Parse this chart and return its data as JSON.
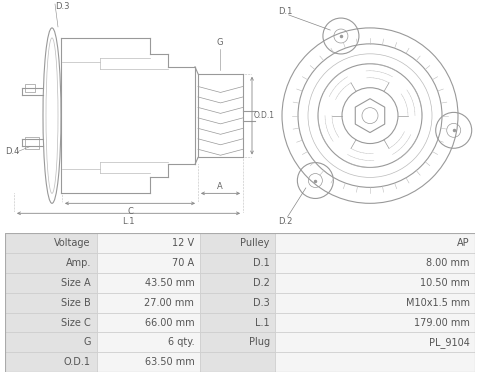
{
  "bg_color": "#ffffff",
  "table_bg_label": "#e2e2e2",
  "table_bg_value": "#f5f5f5",
  "table_border": "#cccccc",
  "lc": "#999999",
  "lc2": "#bbbbbb",
  "dim_color": "#888888",
  "rows": [
    [
      "Voltage",
      "12 V",
      "Pulley",
      "AP"
    ],
    [
      "Amp.",
      "70 A",
      "D.1",
      "8.00 mm"
    ],
    [
      "Size A",
      "43.50 mm",
      "D.2",
      "10.50 mm"
    ],
    [
      "Size B",
      "27.00 mm",
      "D.3",
      "M10x1.5 mm"
    ],
    [
      "Size C",
      "66.00 mm",
      "L.1",
      "179.00 mm"
    ],
    [
      "G",
      "6 qty.",
      "Plug",
      "PL_9104"
    ],
    [
      "O.D.1",
      "63.50 mm",
      "",
      ""
    ]
  ],
  "font_size_table": 7.0,
  "text_color": "#555555",
  "label_color": "#666666"
}
